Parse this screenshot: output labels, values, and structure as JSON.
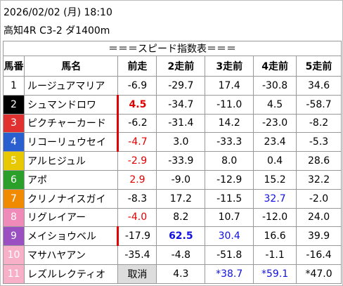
{
  "header": {
    "datetime": "2026/02/02 (月) 18:10",
    "race": "高知4R C3-2 ダ1400m"
  },
  "table": {
    "banner": "＝＝＝スピード指数表＝＝＝",
    "columns": [
      "馬番",
      "馬名",
      "前走",
      "2走前",
      "3走前",
      "4走前",
      "5走前"
    ],
    "rows": [
      [
        "1",
        "ルージュアマリア",
        "-6.9",
        "-29.7",
        "17.4",
        "-30.8",
        "34.6"
      ],
      [
        "2",
        "シュマンドロワ",
        "4.5",
        "-34.7",
        "-11.0",
        "4.5",
        "-58.7"
      ],
      [
        "3",
        "ピクチャーカード",
        "-6.2",
        "-31.4",
        "14.2",
        "-23.0",
        "-8.2"
      ],
      [
        "4",
        "リコーリュウセイ",
        "-4.7",
        "3.0",
        "-33.3",
        "23.4",
        "-5.3"
      ],
      [
        "5",
        "アルヒジュル",
        "-2.9",
        "-33.9",
        "8.0",
        "0.4",
        "28.6"
      ],
      [
        "6",
        "アポ",
        "2.9",
        "-9.0",
        "-12.9",
        "15.2",
        "32.2"
      ],
      [
        "7",
        "クリノナイスガイ",
        "-8.3",
        "17.2",
        "-11.5",
        "32.7",
        "-2.0"
      ],
      [
        "8",
        "リグレイアー",
        "-4.0",
        "8.2",
        "10.7",
        "-12.0",
        "24.0"
      ],
      [
        "9",
        "メイショウベル",
        "-17.9",
        "62.5",
        "30.4",
        "16.6",
        "39.9"
      ],
      [
        "10",
        "マサハヤアン",
        "-35.4",
        "-4.8",
        "-51.8",
        "-1.1",
        "-16.4"
      ],
      [
        "11",
        "レズルレクティオ",
        "取消",
        "4.3",
        "*38.7",
        "*59.1",
        "*47.0"
      ]
    ]
  }
}
